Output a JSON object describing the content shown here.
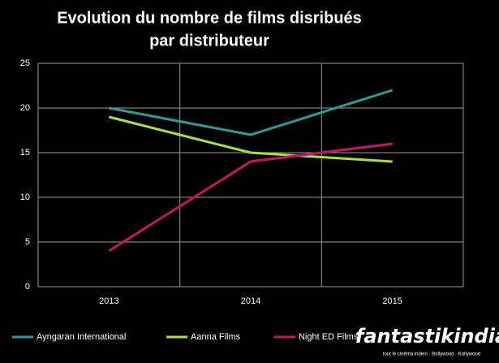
{
  "chart_data": {
    "type": "line",
    "title": [
      "Evolution du nombre de films disribués",
      "par distributeur"
    ],
    "categories": [
      "2013",
      "2014",
      "2015"
    ],
    "series": [
      {
        "name": "Ayngaran International",
        "color": "#2a9d98",
        "values": [
          20,
          17,
          22
        ]
      },
      {
        "name": "Aanna Films",
        "color": "#a6e23a",
        "values": [
          19,
          15,
          14
        ]
      },
      {
        "name": "Night ED Films",
        "color": "#c4156b",
        "values": [
          4,
          14,
          16
        ]
      }
    ],
    "ylim": [
      0,
      25
    ],
    "yticks": [
      0,
      5,
      10,
      15,
      20,
      25
    ],
    "grid": true,
    "legend": "bottom"
  },
  "logo": {
    "name": "fantastikindia",
    "tagline": "tout le cinéma indien · Bollywood · Kollywood"
  }
}
